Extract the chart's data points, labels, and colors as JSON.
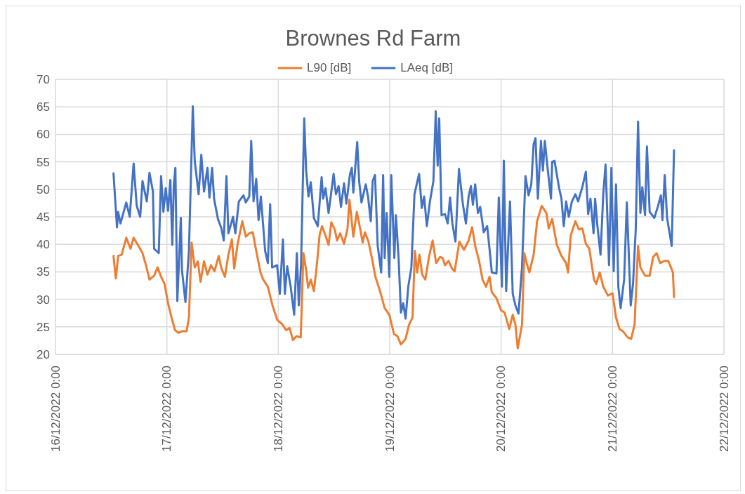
{
  "chart_data": {
    "type": "line",
    "title": "Brownes Rd Farm",
    "legend": "top",
    "grid": true,
    "xlim": [
      "2022-12-16",
      "2022-12-22"
    ],
    "xticks": [
      {
        "value": "2022-12-16",
        "label": "16/12/2022 0:00"
      },
      {
        "value": "2022-12-17",
        "label": "17/12/2022 0:00"
      },
      {
        "value": "2022-12-18",
        "label": "18/12/2022 0:00"
      },
      {
        "value": "2022-12-19",
        "label": "19/12/2022 0:00"
      },
      {
        "value": "2022-12-20",
        "label": "20/12/2022 0:00"
      },
      {
        "value": "2022-12-21",
        "label": "21/12/2022 0:00"
      },
      {
        "value": "2022-12-22",
        "label": "22/12/2022 0:00"
      }
    ],
    "ylim": [
      20,
      70
    ],
    "yticks": [
      20,
      25,
      30,
      35,
      40,
      45,
      50,
      55,
      60,
      65,
      70
    ],
    "series": [
      {
        "name": "LAeq [dB]",
        "color": "#4472c4",
        "x": [
          "2022-12-16T12:30",
          "2022-12-16T13:15",
          "2022-12-16T13:30",
          "2022-12-16T14:00",
          "2022-12-16T15:15",
          "2022-12-16T16:00",
          "2022-12-16T16:50",
          "2022-12-16T17:30",
          "2022-12-16T18:15",
          "2022-12-16T18:45",
          "2022-12-16T19:40",
          "2022-12-16T20:15",
          "2022-12-16T21:00",
          "2022-12-16T21:15",
          "2022-12-16T22:15",
          "2022-12-16T22:45",
          "2022-12-16T23:15",
          "2022-12-16T23:45",
          "2022-12-17T00:15",
          "2022-12-17T00:45",
          "2022-12-17T01:10",
          "2022-12-17T01:30",
          "2022-12-17T01:50",
          "2022-12-17T02:15",
          "2022-12-17T03:00",
          "2022-12-17T03:15",
          "2022-12-17T04:00",
          "2022-12-17T04:45",
          "2022-12-17T05:35",
          "2022-12-17T06:00",
          "2022-12-17T06:50",
          "2022-12-17T07:25",
          "2022-12-17T08:00",
          "2022-12-17T08:45",
          "2022-12-17T09:10",
          "2022-12-17T09:45",
          "2022-12-17T10:10",
          "2022-12-17T11:00",
          "2022-12-17T11:45",
          "2022-12-17T12:15",
          "2022-12-17T12:50",
          "2022-12-17T13:15",
          "2022-12-17T14:15",
          "2022-12-17T14:45",
          "2022-12-17T15:30",
          "2022-12-17T16:30",
          "2022-12-17T17:00",
          "2022-12-17T17:45",
          "2022-12-17T18:10",
          "2022-12-17T18:40",
          "2022-12-17T19:15",
          "2022-12-17T19:45",
          "2022-12-17T20:15",
          "2022-12-17T21:10",
          "2022-12-17T21:45",
          "2022-12-17T22:15",
          "2022-12-17T22:40",
          "2022-12-17T23:45",
          "2022-12-18T00:20",
          "2022-12-18T01:00",
          "2022-12-18T01:25",
          "2022-12-18T01:55",
          "2022-12-18T02:40",
          "2022-12-18T03:25",
          "2022-12-18T04:00",
          "2022-12-18T04:25",
          "2022-12-18T04:55",
          "2022-12-18T05:35",
          "2022-12-18T06:00",
          "2022-12-18T06:30",
          "2022-12-18T07:00",
          "2022-12-18T07:40",
          "2022-12-18T08:30",
          "2022-12-18T09:20",
          "2022-12-18T09:40",
          "2022-12-18T10:10",
          "2022-12-18T10:50",
          "2022-12-18T11:55",
          "2022-12-18T12:25",
          "2022-12-18T13:00",
          "2022-12-18T13:30",
          "2022-12-18T14:10",
          "2022-12-18T14:40",
          "2022-12-18T15:25",
          "2022-12-18T15:50",
          "2022-12-18T16:10",
          "2022-12-18T17:00",
          "2022-12-18T17:25",
          "2022-12-18T17:55",
          "2022-12-18T18:50",
          "2022-12-18T19:20",
          "2022-12-18T19:55",
          "2022-12-18T20:20",
          "2022-12-18T20:50",
          "2022-12-18T21:25",
          "2022-12-18T22:10",
          "2022-12-18T22:35",
          "2022-12-18T22:55",
          "2022-12-18T23:20",
          "2022-12-18T23:55",
          "2022-12-19T00:20",
          "2022-12-19T01:00",
          "2022-12-19T01:20",
          "2022-12-19T01:55",
          "2022-12-19T02:25",
          "2022-12-19T02:55",
          "2022-12-19T03:25",
          "2022-12-19T04:00",
          "2022-12-19T04:40",
          "2022-12-19T05:20",
          "2022-12-19T05:55",
          "2022-12-19T06:20",
          "2022-12-19T06:55",
          "2022-12-19T07:25",
          "2022-12-19T08:00",
          "2022-12-19T08:40",
          "2022-12-19T09:25",
          "2022-12-19T09:55",
          "2022-12-19T10:20",
          "2022-12-19T10:40",
          "2022-12-19T11:10",
          "2022-12-19T11:55",
          "2022-12-19T12:30",
          "2022-12-19T13:00",
          "2022-12-19T13:30",
          "2022-12-19T14:10",
          "2022-12-19T14:55",
          "2022-12-19T15:45",
          "2022-12-19T16:25",
          "2022-12-19T17:00",
          "2022-12-19T17:30",
          "2022-12-19T17:55",
          "2022-12-19T18:25",
          "2022-12-19T19:00",
          "2022-12-19T19:30",
          "2022-12-19T20:15",
          "2022-12-19T21:00",
          "2022-12-19T21:30",
          "2022-12-19T22:00",
          "2022-12-19T23:00",
          "2022-12-19T23:30",
          "2022-12-20T00:10",
          "2022-12-20T00:35",
          "2022-12-20T01:05",
          "2022-12-20T01:55",
          "2022-12-20T02:30",
          "2022-12-20T03:05",
          "2022-12-20T03:45",
          "2022-12-20T04:30",
          "2022-12-20T05:15",
          "2022-12-20T05:55",
          "2022-12-20T06:30",
          "2022-12-20T07:00",
          "2022-12-20T07:25",
          "2022-12-20T07:55",
          "2022-12-20T08:35",
          "2022-12-20T09:00",
          "2022-12-20T09:25",
          "2022-12-20T10:00",
          "2022-12-20T10:45",
          "2022-12-20T11:00",
          "2022-12-20T11:30",
          "2022-12-20T12:30",
          "2022-12-20T13:00",
          "2022-12-20T13:30",
          "2022-12-20T14:00",
          "2022-12-20T14:35",
          "2022-12-20T15:15",
          "2022-12-20T16:00",
          "2022-12-20T16:35",
          "2022-12-20T17:30",
          "2022-12-20T18:15",
          "2022-12-20T18:45",
          "2022-12-20T19:15",
          "2022-12-20T19:55",
          "2022-12-20T20:15",
          "2022-12-20T20:45",
          "2022-12-20T21:25",
          "2022-12-20T22:00",
          "2022-12-20T22:30",
          "2022-12-20T23:15",
          "2022-12-20T23:45",
          "2022-12-21T00:15",
          "2022-12-21T00:45",
          "2022-12-21T01:15",
          "2022-12-21T01:45",
          "2022-12-21T02:30",
          "2022-12-21T03:05",
          "2022-12-21T03:55",
          "2022-12-21T04:25",
          "2022-12-21T05:00",
          "2022-12-21T05:30",
          "2022-12-21T06:00",
          "2022-12-21T06:25",
          "2022-12-21T07:00",
          "2022-12-21T07:25",
          "2022-12-21T08:00",
          "2022-12-21T09:00",
          "2022-12-21T09:45",
          "2022-12-21T10:25",
          "2022-12-21T10:45",
          "2022-12-21T11:15",
          "2022-12-21T11:45",
          "2022-12-21T12:45",
          "2022-12-21T13:15"
        ],
        "values": [
          52.9,
          43.1,
          45.9,
          43.8,
          47.6,
          45,
          54.7,
          47,
          45,
          51.5,
          47.8,
          53,
          49.6,
          39.2,
          38.4,
          52.4,
          45.9,
          50.2,
          46.1,
          51.7,
          39.9,
          50.9,
          53.9,
          29.7,
          44.8,
          35.3,
          29.5,
          38.8,
          65.1,
          55.2,
          49.1,
          56.3,
          49.6,
          53.9,
          48.5,
          53.9,
          48.3,
          44.6,
          42.9,
          40.7,
          52.4,
          42,
          45,
          42,
          47.8,
          48.9,
          47.6,
          48.7,
          58.8,
          47.8,
          51.9,
          44.4,
          48.7,
          38.8,
          36.6,
          47.3,
          35.8,
          36.2,
          31,
          40.9,
          31,
          36,
          32.3,
          27.2,
          38.4,
          28.9,
          36.6,
          62.9,
          53.4,
          48.7,
          51.3,
          44.8,
          43.3,
          52.2,
          48.3,
          50.2,
          45.7,
          52.8,
          49.1,
          50.6,
          46.8,
          51.1,
          47.4,
          52.6,
          53.9,
          49.4,
          58.6,
          51.5,
          47.6,
          50.9,
          48.7,
          44.2,
          51.5,
          52.6,
          39.7,
          34.9,
          52.6,
          37.5,
          45.7,
          34.1,
          52.6,
          37.5,
          45.3,
          37.5,
          27.6,
          29.3,
          26.5,
          32.3,
          35.8,
          49.1,
          51.3,
          52.8,
          46.6,
          48.7,
          43.3,
          47.8,
          51.5,
          64.2,
          54.3,
          62.9,
          45.3,
          45.5,
          43.8,
          48.5,
          43.8,
          40.5,
          53.7,
          47.4,
          43.8,
          48.7,
          50.6,
          47.2,
          50.9,
          45.7,
          46.8,
          42.2,
          43.3,
          39.2,
          34.9,
          34.7,
          48.5,
          32.3,
          55.2,
          31.5,
          47.8,
          31,
          28.9,
          27.4,
          35.8,
          52.4,
          48.9,
          50.9,
          58.2,
          59.3,
          48.3,
          58.8,
          53.4,
          58.8,
          53.9,
          48.3,
          55,
          55.2,
          50.2,
          48.3,
          43.3,
          47.8,
          45,
          47.8,
          49.1,
          47.8,
          50.4,
          53.2,
          45.5,
          48.3,
          42,
          48.3,
          43.3,
          38.1,
          49.1,
          54.5,
          36.2,
          53.9,
          35.1,
          50.9,
          32.3,
          28.4,
          33.6,
          47.6,
          28.9,
          32.8,
          42.7,
          62.3,
          45.7,
          50.4,
          45.3,
          57.8,
          45.9,
          44.8,
          46.8,
          48.9,
          44.4,
          52.6,
          44.8,
          39.7,
          57.1
        ]
      },
      {
        "name": "L90 [dB]",
        "color": "#ed7d31",
        "x": [
          "2022-12-16T12:30",
          "2022-12-16T13:00",
          "2022-12-16T13:30",
          "2022-12-16T14:15",
          "2022-12-16T15:15",
          "2022-12-16T16:10",
          "2022-12-16T16:50",
          "2022-12-16T17:45",
          "2022-12-16T18:45",
          "2022-12-16T19:30",
          "2022-12-16T20:15",
          "2022-12-16T21:15",
          "2022-12-16T22:00",
          "2022-12-16T22:45",
          "2022-12-16T23:30",
          "2022-12-17T00:15",
          "2022-12-17T01:00",
          "2022-12-17T01:45",
          "2022-12-17T02:30",
          "2022-12-17T03:15",
          "2022-12-17T04:15",
          "2022-12-17T04:45",
          "2022-12-17T05:20",
          "2022-12-17T06:00",
          "2022-12-17T06:40",
          "2022-12-17T07:15",
          "2022-12-17T08:00",
          "2022-12-17T08:45",
          "2022-12-17T09:30",
          "2022-12-17T10:15",
          "2022-12-17T11:10",
          "2022-12-17T11:45",
          "2022-12-17T12:30",
          "2022-12-17T13:15",
          "2022-12-17T14:00",
          "2022-12-17T14:30",
          "2022-12-17T15:15",
          "2022-12-17T16:15",
          "2022-12-17T17:00",
          "2022-12-17T17:45",
          "2022-12-17T18:30",
          "2022-12-17T19:15",
          "2022-12-17T20:10",
          "2022-12-17T20:45",
          "2022-12-17T21:45",
          "2022-12-17T22:45",
          "2022-12-17T23:45",
          "2022-12-18T00:55",
          "2022-12-18T01:40",
          "2022-12-18T02:25",
          "2022-12-18T03:10",
          "2022-12-18T03:55",
          "2022-12-18T04:50",
          "2022-12-18T05:25",
          "2022-12-18T06:00",
          "2022-12-18T06:25",
          "2022-12-18T07:00",
          "2022-12-18T07:40",
          "2022-12-18T08:10",
          "2022-12-18T08:55",
          "2022-12-18T09:25",
          "2022-12-18T10:10",
          "2022-12-18T10:50",
          "2022-12-18T11:25",
          "2022-12-18T12:10",
          "2022-12-18T12:40",
          "2022-12-18T13:20",
          "2022-12-18T14:10",
          "2022-12-18T14:55",
          "2022-12-18T15:20",
          "2022-12-18T16:10",
          "2022-12-18T16:55",
          "2022-12-18T17:40",
          "2022-12-18T18:10",
          "2022-12-18T18:40",
          "2022-12-18T19:25",
          "2022-12-18T20:10",
          "2022-12-18T20:55",
          "2022-12-18T21:55",
          "2022-12-18T22:55",
          "2022-12-18T23:55",
          "2022-12-19T00:55",
          "2022-12-19T01:40",
          "2022-12-19T02:25",
          "2022-12-19T03:25",
          "2022-12-19T04:10",
          "2022-12-19T04:55",
          "2022-12-19T05:25",
          "2022-12-19T05:55",
          "2022-12-19T06:25",
          "2022-12-19T07:00",
          "2022-12-19T07:40",
          "2022-12-19T08:30",
          "2022-12-19T09:15",
          "2022-12-19T10:00",
          "2022-12-19T10:50",
          "2022-12-19T11:25",
          "2022-12-19T11:55",
          "2022-12-19T12:40",
          "2022-12-19T13:25",
          "2022-12-19T14:00",
          "2022-12-19T15:00",
          "2022-12-19T16:00",
          "2022-12-19T17:00",
          "2022-12-19T17:45",
          "2022-12-19T18:30",
          "2022-12-19T19:15",
          "2022-12-19T20:00",
          "2022-12-19T20:45",
          "2022-12-19T21:30",
          "2022-12-19T22:00",
          "2022-12-19T23:00",
          "2022-12-20T00:00",
          "2022-12-20T00:45",
          "2022-12-20T01:45",
          "2022-12-20T02:30",
          "2022-12-20T03:05",
          "2022-12-20T03:35",
          "2022-12-20T04:30",
          "2022-12-20T05:00",
          "2022-12-20T05:30",
          "2022-12-20T06:05",
          "2022-12-20T07:00",
          "2022-12-20T07:45",
          "2022-12-20T08:45",
          "2022-12-20T09:45",
          "2022-12-20T10:15",
          "2022-12-20T11:00",
          "2022-12-20T12:00",
          "2022-12-20T13:00",
          "2022-12-20T14:00",
          "2022-12-20T14:25",
          "2022-12-20T15:00",
          "2022-12-20T16:00",
          "2022-12-20T16:45",
          "2022-12-20T17:30",
          "2022-12-20T18:15",
          "2022-12-20T19:00",
          "2022-12-20T20:00",
          "2022-12-20T20:30",
          "2022-12-20T21:15",
          "2022-12-20T22:00",
          "2022-12-20T23:00",
          "2022-12-21T00:00",
          "2022-12-21T00:45",
          "2022-12-21T01:30",
          "2022-12-21T02:15",
          "2022-12-21T03:15",
          "2022-12-21T04:00",
          "2022-12-21T04:45",
          "2022-12-21T05:30",
          "2022-12-21T06:00",
          "2022-12-21T07:00",
          "2022-12-21T08:00",
          "2022-12-21T08:45",
          "2022-12-21T09:30",
          "2022-12-21T10:15",
          "2022-12-21T11:15",
          "2022-12-21T12:00",
          "2022-12-21T12:30",
          "2022-12-21T13:00",
          "2022-12-21T13:15"
        ],
        "values": [
          37.9,
          33.8,
          37.9,
          38.1,
          41.2,
          39.2,
          41.2,
          39.9,
          38.4,
          36.2,
          33.6,
          34.3,
          35.8,
          34.1,
          32.8,
          29.3,
          26.7,
          24.4,
          23.9,
          24.2,
          24.2,
          26.7,
          40.3,
          35.8,
          36.9,
          33.2,
          36.9,
          34.5,
          36.2,
          35.1,
          37.9,
          35.6,
          34.1,
          38.1,
          40.9,
          35.6,
          40.1,
          44.2,
          41.4,
          42,
          42.2,
          38.8,
          34.9,
          33.6,
          32.3,
          28.9,
          26.3,
          25.4,
          24.4,
          24.8,
          22.6,
          23.3,
          23.1,
          38.4,
          35.3,
          32.1,
          33.6,
          31.5,
          35.1,
          41.8,
          43.3,
          41.6,
          39.9,
          44,
          42.7,
          40.7,
          42,
          40.1,
          42.9,
          48.1,
          41.4,
          45.9,
          42.7,
          40.3,
          42.2,
          40.5,
          37.5,
          34.1,
          31.5,
          28.4,
          27.2,
          23.7,
          23.3,
          21.8,
          22.8,
          25.4,
          26.7,
          38.8,
          34.9,
          38.1,
          34.5,
          33.6,
          37.9,
          40.7,
          36.6,
          37.7,
          37.5,
          36.2,
          37,
          35.6,
          35.1,
          40.5,
          39,
          40.7,
          43.1,
          39.4,
          37,
          33.6,
          32.3,
          34.1,
          31.3,
          30.2,
          28,
          27.6,
          24.6,
          27.2,
          25.4,
          21.1,
          25.4,
          38.4,
          36.6,
          34.9,
          38.1,
          44.2,
          47,
          45.7,
          42.9,
          44.6,
          39.9,
          37.9,
          36.6,
          34.9,
          41.6,
          44.2,
          42.7,
          42.9,
          40.1,
          39.2,
          33.6,
          32.8,
          34.9,
          32.3,
          30.7,
          31.1,
          26.7,
          24.6,
          24.2,
          23.1,
          22.8,
          25.4,
          39.7,
          35.8,
          34.3,
          34.3,
          37.7,
          38.4,
          36.6,
          37,
          37,
          36,
          34.9,
          30.4
        ]
      }
    ]
  }
}
